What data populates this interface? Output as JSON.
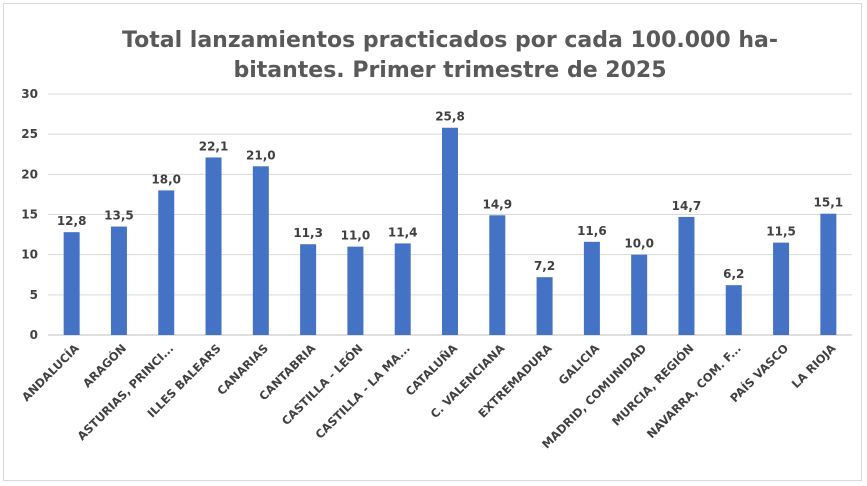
{
  "chart_data": {
    "type": "bar",
    "title": "Total lanzamientos practicados por cada 100.000 ha-\nbitantes. Primer trimestre de 2025",
    "xlabel": "",
    "ylabel": "",
    "ylim": [
      0,
      30
    ],
    "yticks": [
      0,
      5,
      10,
      15,
      20,
      25,
      30
    ],
    "grid": true,
    "bar_color": "#4472c4",
    "gridline_color": "#d9d9d9",
    "categories": [
      "ANDALUCÍA",
      "ARAGÓN",
      "ASTURIAS, PRINCI...",
      "ILLES BALEARS",
      "CANARIAS",
      "CANTABRIA",
      "CASTILLA - LEÓN",
      "CASTILLA - LA MA...",
      "CATALUÑA",
      "C. VALENCIANA",
      "EXTREMADURA",
      "GALICIA",
      "MADRID, COMUNIDAD",
      "MURCIA, REGIÓN",
      "NAVARRA, COM. F...",
      "PAÍS VASCO",
      "LA RIOJA"
    ],
    "values": [
      12.8,
      13.5,
      18.0,
      22.1,
      21.0,
      11.3,
      11.0,
      11.4,
      25.8,
      14.9,
      7.2,
      11.6,
      10.0,
      14.7,
      6.2,
      11.5,
      15.1
    ],
    "data_labels": [
      "12,8",
      "13,5",
      "18,0",
      "22,1",
      "21,0",
      "11,3",
      "11,0",
      "11,4",
      "25,8",
      "14,9",
      "7,2",
      "11,6",
      "10,0",
      "14,7",
      "6,2",
      "11,5",
      "15,1"
    ]
  }
}
